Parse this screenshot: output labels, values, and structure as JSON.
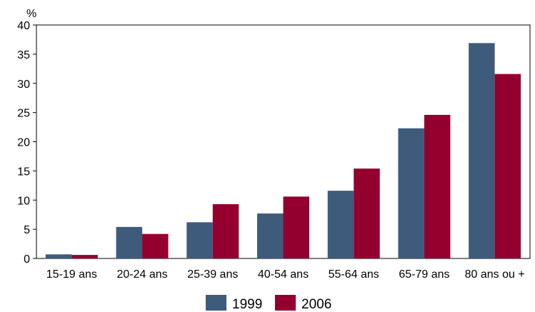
{
  "chart_data": {
    "type": "bar",
    "ylabel": "%",
    "ylim": [
      0,
      40
    ],
    "yticks": [
      0,
      5,
      10,
      15,
      20,
      25,
      30,
      35,
      40
    ],
    "categories": [
      "15-19 ans",
      "20-24 ans",
      "25-39 ans",
      "40-54 ans",
      "55-64 ans",
      "65-79 ans",
      "80 ans ou +"
    ],
    "series": [
      {
        "name": "1999",
        "color": "#3f5b7c",
        "values": [
          0.7,
          5.4,
          6.2,
          7.7,
          11.6,
          22.3,
          36.9
        ]
      },
      {
        "name": "2006",
        "color": "#93002f",
        "values": [
          0.6,
          4.2,
          9.3,
          10.6,
          15.4,
          24.6,
          31.6
        ]
      }
    ],
    "grid": false,
    "legend_position": "bottom-center"
  }
}
